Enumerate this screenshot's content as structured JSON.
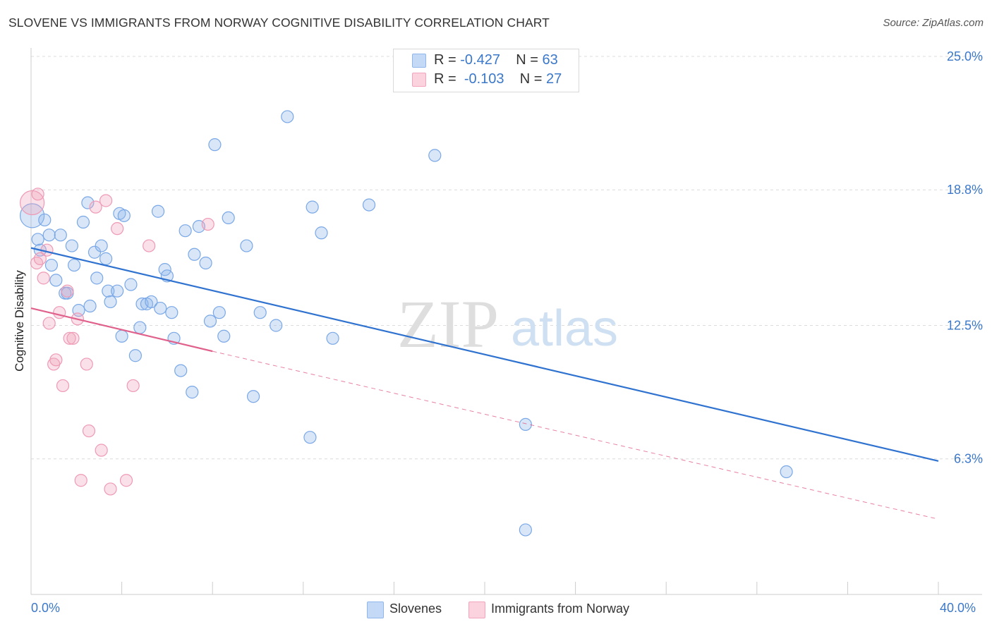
{
  "chart_data": {
    "type": "scatter",
    "title": "SLOVENE VS IMMIGRANTS FROM NORWAY COGNITIVE DISABILITY CORRELATION CHART",
    "source": "Source: ZipAtlas.com",
    "ylabel": "Cognitive Disability",
    "xlabel": "",
    "xlim": [
      0,
      40
    ],
    "ylim": [
      0,
      25
    ],
    "x_tick_labels": [
      "0.0%",
      "40.0%"
    ],
    "y_ticks": [
      {
        "value": 25.0,
        "label": "25.0%"
      },
      {
        "value": 18.8,
        "label": "18.8%"
      },
      {
        "value": 12.5,
        "label": "12.5%"
      },
      {
        "value": 6.3,
        "label": "6.3%"
      }
    ],
    "watermark": {
      "part1": "ZIP",
      "part2": "atlas"
    },
    "legend": {
      "r_label": "R =",
      "n_label": "N =",
      "entries": [
        {
          "name": "Slovenes",
          "r": "-0.427",
          "n": "63",
          "color": "#8fb7ec"
        },
        {
          "name": "Immigrants from Norway",
          "r": "-0.103",
          "n": "27",
          "color": "#f2a5bd"
        }
      ]
    },
    "series": [
      {
        "name": "Slovenes",
        "color": "#8fb7ec",
        "line_color": "#2f72cf",
        "trend": {
          "x0": 0,
          "y0": 16.1,
          "x1": 40,
          "y1": 6.2
        },
        "points": [
          [
            0.05,
            17.6
          ],
          [
            0.3,
            16.5
          ],
          [
            0.4,
            16.0
          ],
          [
            0.6,
            17.4
          ],
          [
            0.8,
            16.7
          ],
          [
            0.9,
            15.3
          ],
          [
            1.1,
            14.6
          ],
          [
            1.3,
            16.7
          ],
          [
            1.5,
            14.0
          ],
          [
            1.6,
            14.0
          ],
          [
            1.8,
            16.2
          ],
          [
            1.9,
            15.3
          ],
          [
            2.1,
            13.2
          ],
          [
            2.3,
            17.3
          ],
          [
            2.5,
            18.2
          ],
          [
            2.6,
            13.4
          ],
          [
            2.8,
            15.9
          ],
          [
            2.9,
            14.7
          ],
          [
            3.1,
            16.2
          ],
          [
            3.3,
            15.6
          ],
          [
            3.4,
            14.1
          ],
          [
            3.5,
            13.6
          ],
          [
            3.8,
            14.1
          ],
          [
            3.9,
            17.7
          ],
          [
            4.0,
            12.0
          ],
          [
            4.1,
            17.6
          ],
          [
            4.4,
            14.4
          ],
          [
            4.6,
            11.1
          ],
          [
            4.8,
            12.4
          ],
          [
            4.9,
            13.5
          ],
          [
            5.1,
            13.5
          ],
          [
            5.3,
            13.6
          ],
          [
            5.6,
            17.8
          ],
          [
            5.7,
            13.3
          ],
          [
            5.9,
            15.1
          ],
          [
            6.0,
            14.8
          ],
          [
            6.2,
            13.1
          ],
          [
            6.3,
            11.9
          ],
          [
            6.6,
            10.4
          ],
          [
            6.8,
            16.9
          ],
          [
            7.1,
            9.4
          ],
          [
            7.2,
            15.8
          ],
          [
            7.4,
            17.1
          ],
          [
            7.7,
            15.4
          ],
          [
            7.9,
            12.7
          ],
          [
            8.1,
            20.9
          ],
          [
            8.3,
            13.1
          ],
          [
            8.5,
            12.0
          ],
          [
            8.7,
            17.5
          ],
          [
            9.5,
            16.2
          ],
          [
            9.8,
            9.2
          ],
          [
            10.1,
            13.1
          ],
          [
            10.8,
            12.5
          ],
          [
            11.3,
            22.2
          ],
          [
            12.3,
            7.3
          ],
          [
            12.4,
            18.0
          ],
          [
            12.8,
            16.8
          ],
          [
            13.3,
            11.9
          ],
          [
            14.9,
            18.1
          ],
          [
            17.8,
            20.4
          ],
          [
            21.8,
            7.9
          ],
          [
            33.3,
            5.7
          ],
          [
            21.8,
            3.0
          ]
        ]
      },
      {
        "name": "Immigrants from Norway",
        "color": "#f2a5bd",
        "line_color": "#e0628c",
        "trend": {
          "x0": 0,
          "y0": 13.3,
          "x1": 8,
          "y1": 11.3
        },
        "trend_ext": {
          "x0": 8,
          "y0": 11.3,
          "x1": 40,
          "y1": 3.5
        },
        "points": [
          [
            0.05,
            18.2
          ],
          [
            0.25,
            15.4
          ],
          [
            0.4,
            15.6
          ],
          [
            0.55,
            14.7
          ],
          [
            0.7,
            16.0
          ],
          [
            0.8,
            12.6
          ],
          [
            1.0,
            10.7
          ],
          [
            1.1,
            10.9
          ],
          [
            1.25,
            13.1
          ],
          [
            1.4,
            9.7
          ],
          [
            1.6,
            14.1
          ],
          [
            1.7,
            11.9
          ],
          [
            1.85,
            11.9
          ],
          [
            2.05,
            12.8
          ],
          [
            2.2,
            5.3
          ],
          [
            2.45,
            10.7
          ],
          [
            2.55,
            7.6
          ],
          [
            2.85,
            18.0
          ],
          [
            3.1,
            6.7
          ],
          [
            3.3,
            18.3
          ],
          [
            3.5,
            4.9
          ],
          [
            3.8,
            17.0
          ],
          [
            4.2,
            5.3
          ],
          [
            4.5,
            9.7
          ],
          [
            5.2,
            16.2
          ],
          [
            0.3,
            18.6
          ],
          [
            7.8,
            17.2
          ]
        ]
      }
    ]
  }
}
